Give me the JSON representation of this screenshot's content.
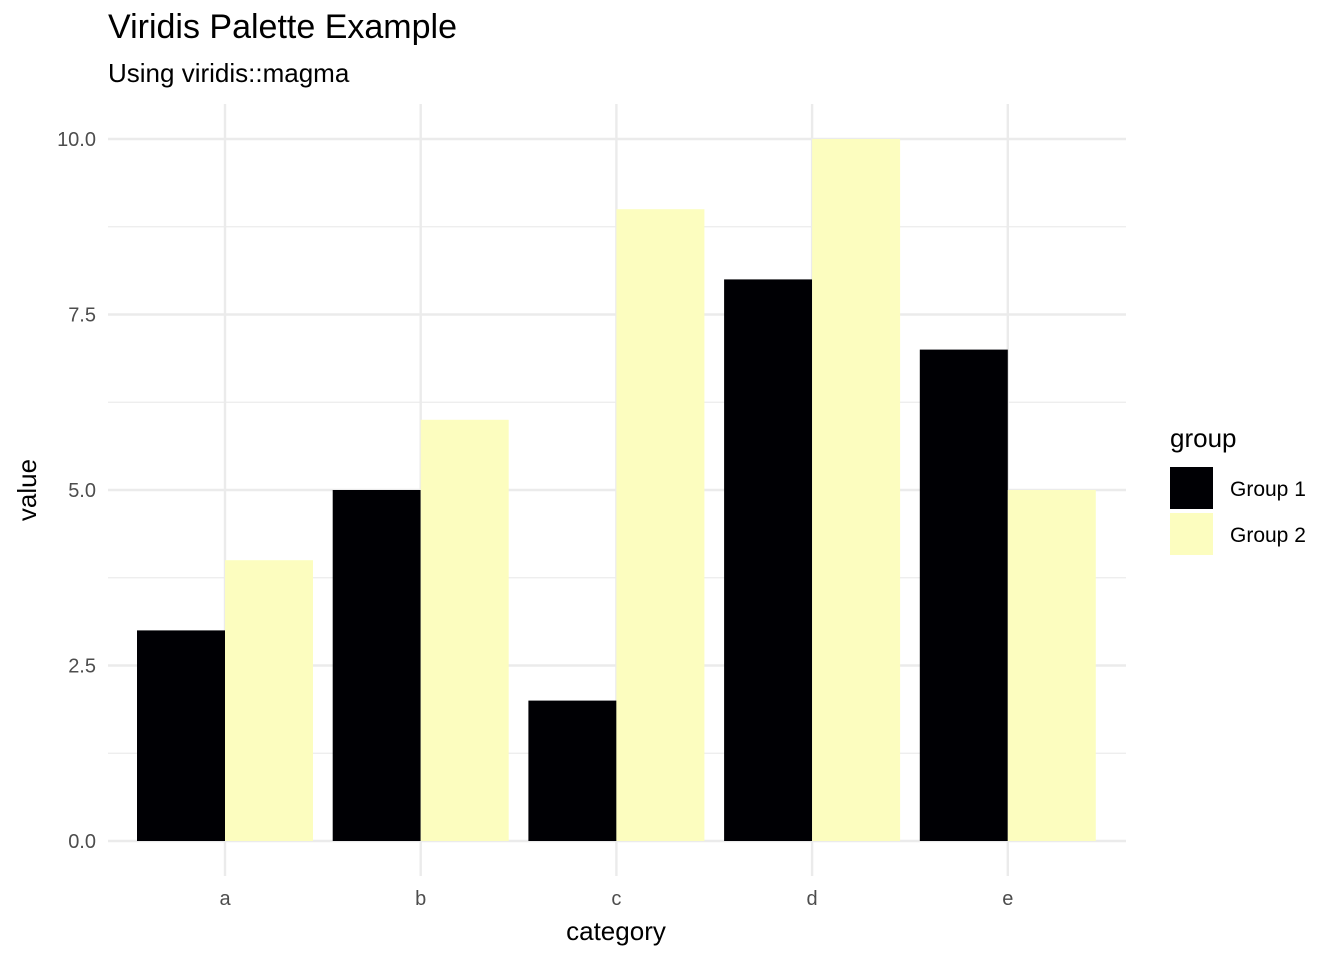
{
  "chart_data": {
    "type": "bar",
    "title": "Viridis Palette Example",
    "subtitle": "Using viridis::magma",
    "xlabel": "category",
    "ylabel": "value",
    "categories": [
      "a",
      "b",
      "c",
      "d",
      "e"
    ],
    "series": [
      {
        "name": "Group 1",
        "color": "#000004",
        "values": [
          3,
          5,
          2,
          8,
          7
        ]
      },
      {
        "name": "Group 2",
        "color": "#FCFDBF",
        "values": [
          4,
          6,
          9,
          10,
          5
        ]
      }
    ],
    "ylim": [
      0,
      10
    ],
    "yticks": [
      0,
      2.5,
      5,
      7.5,
      10
    ],
    "ytick_labels": [
      "0.0",
      "2.5",
      "5.0",
      "7.5",
      "10.0"
    ],
    "grid": true,
    "legend": {
      "title": "group",
      "position": "right"
    }
  }
}
